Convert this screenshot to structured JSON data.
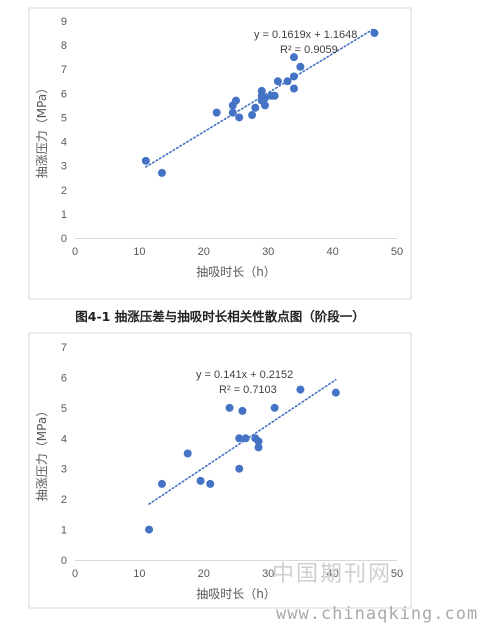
{
  "chart_data": [
    {
      "type": "scatter",
      "xlabel": "抽吸时长（h）",
      "ylabel": "抽涨压力（MPa）",
      "xlim": [
        0,
        50
      ],
      "ylim": [
        0,
        9
      ],
      "xticks": [
        0,
        10,
        20,
        30,
        40,
        50
      ],
      "yticks": [
        0,
        1,
        2,
        3,
        4,
        5,
        6,
        7,
        8,
        9
      ],
      "trendline": {
        "type": "linear",
        "slope": 0.1619,
        "intercept": 1.1648,
        "x_range": [
          11,
          46.5
        ],
        "style": "dotted"
      },
      "equation": "y = 0.1619x + 1.1648",
      "r2": "R² = 0.9059",
      "grid": false,
      "series": [
        {
          "color": "#4472C4",
          "points": [
            [
              11,
              3.2
            ],
            [
              13.5,
              2.7
            ],
            [
              22,
              5.2
            ],
            [
              24.5,
              5.2
            ],
            [
              24.5,
              5.5
            ],
            [
              25,
              5.7
            ],
            [
              25.5,
              5.0
            ],
            [
              27.5,
              5.1
            ],
            [
              28,
              5.4
            ],
            [
              29,
              5.9
            ],
            [
              29,
              6.1
            ],
            [
              29,
              5.7
            ],
            [
              29.5,
              5.8
            ],
            [
              29.5,
              5.5
            ],
            [
              30.5,
              5.9
            ],
            [
              31,
              5.9
            ],
            [
              31.5,
              6.5
            ],
            [
              33,
              6.5
            ],
            [
              34,
              7.5
            ],
            [
              34,
              6.7
            ],
            [
              34,
              6.2
            ],
            [
              35,
              7.1
            ],
            [
              46.5,
              8.5
            ]
          ]
        }
      ]
    },
    {
      "type": "scatter",
      "xlabel": "抽吸时长（h）",
      "ylabel": "抽涨压力（MPa）",
      "xlim": [
        0,
        50
      ],
      "ylim": [
        0,
        7
      ],
      "xticks": [
        0,
        10,
        20,
        30,
        40,
        50
      ],
      "yticks": [
        0,
        1,
        2,
        3,
        4,
        5,
        6,
        7
      ],
      "trendline": {
        "type": "linear",
        "slope": 0.141,
        "intercept": 0.2152,
        "x_range": [
          11.5,
          40.5
        ],
        "style": "dotted"
      },
      "equation": "y = 0.141x + 0.2152",
      "r2": "R² = 0.7103",
      "grid": false,
      "series": [
        {
          "color": "#4472C4",
          "points": [
            [
              11.5,
              1.0
            ],
            [
              13.5,
              2.5
            ],
            [
              17.5,
              3.5
            ],
            [
              19.5,
              2.6
            ],
            [
              21,
              2.5
            ],
            [
              24,
              5.0
            ],
            [
              25.5,
              3.0
            ],
            [
              25.5,
              4.0
            ],
            [
              26,
              4.9
            ],
            [
              26.5,
              4.0
            ],
            [
              28,
              4.0
            ],
            [
              28.5,
              3.9
            ],
            [
              28.5,
              3.7
            ],
            [
              31,
              5.0
            ],
            [
              35,
              5.6
            ],
            [
              40.5,
              5.5
            ]
          ]
        }
      ]
    }
  ],
  "caption": "图4-1  抽涨压差与抽吸时长相关性散点图（阶段一）",
  "watermark": {
    "cn": "中国期刊网",
    "url": "www.chinaqking.com"
  }
}
